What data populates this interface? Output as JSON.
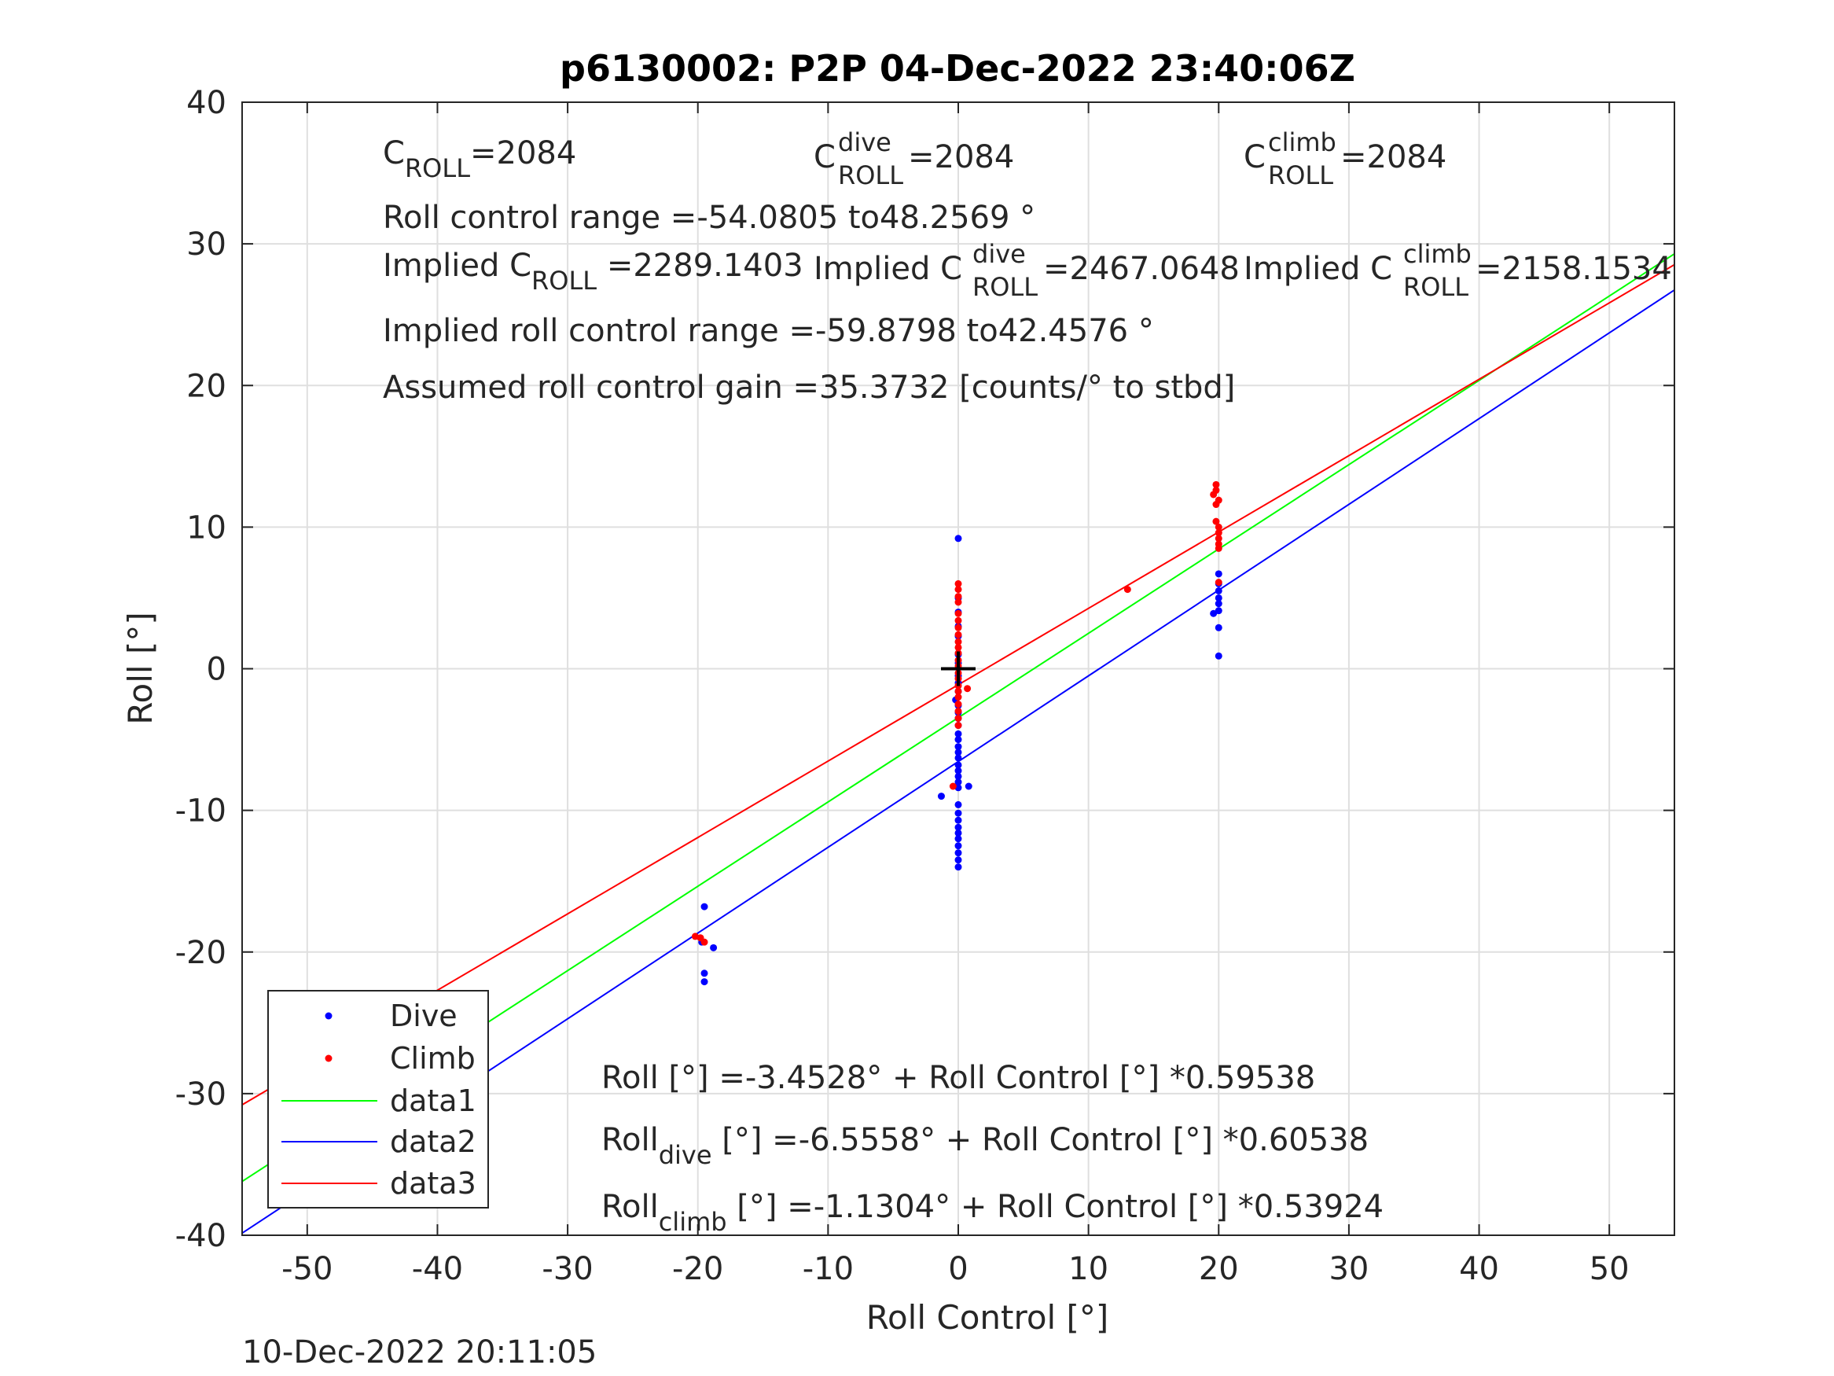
{
  "chart_data": {
    "type": "scatter",
    "title": "p6130002: P2P 04-Dec-2022 23:40:06Z",
    "xlabel": "Roll Control [°]",
    "ylabel": "Roll [°]",
    "xlim": [
      -55,
      55
    ],
    "ylim": [
      -40,
      40
    ],
    "xticks": [
      -50,
      -40,
      -30,
      -20,
      -10,
      0,
      10,
      20,
      30,
      40,
      50
    ],
    "yticks": [
      -40,
      -30,
      -20,
      -10,
      0,
      10,
      20,
      30,
      40
    ],
    "grid": true,
    "legend_position": "bottom-left",
    "footer": "10-Dec-2022 20:11:05",
    "crosshair": {
      "x": 0,
      "y": 0
    },
    "annotations": {
      "c_roll": {
        "base": "C",
        "sub": "ROLL",
        "value": "=2084"
      },
      "c_roll_dive": {
        "base": "C",
        "sup": "dive",
        "sub": "ROLL",
        "value": " =2084"
      },
      "c_roll_climb": {
        "base": "C",
        "sup": "climb",
        "sub": "ROLL",
        "value": " =2084"
      },
      "roll_range": "Roll control range =-54.0805 to48.2569 °",
      "implied_c_roll": {
        "base": "Implied C",
        "sub": "ROLL",
        "value": " =2289.1403"
      },
      "implied_c_roll_dive": {
        "base": "Implied C",
        "sup": "dive",
        "sub": "ROLL",
        "value": " =2467.0648"
      },
      "implied_c_roll_climb": {
        "base": "Implied C",
        "sup": "climb",
        "sub": "ROLL",
        "value": " =2158.1534"
      },
      "implied_range": "Implied roll control range =-59.8798 to42.4576 °",
      "gain": "Assumed roll control gain =35.3732 [counts/° to stbd]",
      "fit_all": {
        "base": "Roll",
        "sub": "",
        "text": "Roll [°] =-3.4528° + Roll Control [°] *0.59538"
      },
      "fit_dive": {
        "base": "Roll",
        "sub": "dive",
        "rest": " [°] =-6.5558° + Roll Control [°] *0.60538"
      },
      "fit_climb": {
        "base": "Roll",
        "sub": "climb",
        "rest": " [°] =-1.1304° + Roll Control [°] *0.53924"
      }
    },
    "series": [
      {
        "name": "Dive",
        "kind": "points",
        "color": "#0000ff",
        "points": [
          [
            0,
            9.2
          ],
          [
            0,
            5.0
          ],
          [
            0,
            4.0
          ],
          [
            0,
            3.0
          ],
          [
            0,
            2.3
          ],
          [
            0,
            1.0
          ],
          [
            0,
            0.4
          ],
          [
            0,
            -0.5
          ],
          [
            0,
            -1.0
          ],
          [
            0,
            -1.6
          ],
          [
            -0.2,
            -2.2
          ],
          [
            0,
            -2.6
          ],
          [
            0,
            -3.1
          ],
          [
            0,
            -3.5
          ],
          [
            0,
            -4.0
          ],
          [
            0,
            -4.6
          ],
          [
            0,
            -5.0
          ],
          [
            0,
            -5.5
          ],
          [
            0,
            -5.9
          ],
          [
            0,
            -6.3
          ],
          [
            0,
            -6.8
          ],
          [
            0,
            -7.2
          ],
          [
            0,
            -7.6
          ],
          [
            0,
            -8.0
          ],
          [
            0,
            -8.4
          ],
          [
            0.8,
            -8.3
          ],
          [
            -1.3,
            -9.0
          ],
          [
            0,
            -9.6
          ],
          [
            0,
            -10.2
          ],
          [
            0,
            -10.7
          ],
          [
            0,
            -11.2
          ],
          [
            0,
            -11.6
          ],
          [
            0,
            -12.0
          ],
          [
            0,
            -12.5
          ],
          [
            0,
            -13.0
          ],
          [
            0,
            -13.5
          ],
          [
            0,
            -14.0
          ],
          [
            20,
            6.7
          ],
          [
            20,
            6.0
          ],
          [
            20,
            5.5
          ],
          [
            20,
            5.0
          ],
          [
            20,
            4.6
          ],
          [
            20,
            4.1
          ],
          [
            19.6,
            3.9
          ],
          [
            20,
            2.9
          ],
          [
            20,
            0.9
          ],
          [
            -19.5,
            -16.8
          ],
          [
            -19.5,
            -21.5
          ],
          [
            -19.5,
            -22.1
          ],
          [
            -18.8,
            -19.7
          ],
          [
            -19.7,
            -19.3
          ]
        ]
      },
      {
        "name": "Climb",
        "kind": "points",
        "color": "#ff0000",
        "points": [
          [
            0,
            6.0
          ],
          [
            0,
            5.6
          ],
          [
            0,
            5.1
          ],
          [
            0,
            4.7
          ],
          [
            0,
            3.9
          ],
          [
            0,
            3.4
          ],
          [
            0,
            2.9
          ],
          [
            0,
            2.4
          ],
          [
            0,
            1.9
          ],
          [
            0,
            1.5
          ],
          [
            0,
            1.1
          ],
          [
            0,
            0.6
          ],
          [
            0,
            0.2
          ],
          [
            0,
            -0.3
          ],
          [
            0,
            -0.7
          ],
          [
            0,
            -1.2
          ],
          [
            0,
            -1.6
          ],
          [
            0.7,
            -1.4
          ],
          [
            0,
            -2.0
          ],
          [
            0,
            -2.5
          ],
          [
            0,
            -3.0
          ],
          [
            0,
            -3.5
          ],
          [
            0,
            -4.0
          ],
          [
            -0.4,
            -8.3
          ],
          [
            13,
            5.6
          ],
          [
            19.8,
            13.0
          ],
          [
            19.8,
            12.6
          ],
          [
            19.6,
            12.3
          ],
          [
            20,
            11.9
          ],
          [
            19.8,
            11.6
          ],
          [
            19.8,
            10.4
          ],
          [
            20,
            10.0
          ],
          [
            20,
            9.6
          ],
          [
            20,
            9.2
          ],
          [
            20,
            8.8
          ],
          [
            20,
            8.5
          ],
          [
            20,
            6.1
          ],
          [
            -19.8,
            -19.0
          ],
          [
            -19.5,
            -19.3
          ],
          [
            -20.2,
            -18.9
          ]
        ]
      },
      {
        "name": "data1",
        "kind": "line",
        "color": "#00ff00",
        "intercept": -3.4528,
        "slope": 0.59538
      },
      {
        "name": "data2",
        "kind": "line",
        "color": "#0000ff",
        "intercept": -6.5558,
        "slope": 0.60538
      },
      {
        "name": "data3",
        "kind": "line",
        "color": "#ff0000",
        "intercept": -1.1304,
        "slope": 0.53924
      }
    ]
  }
}
